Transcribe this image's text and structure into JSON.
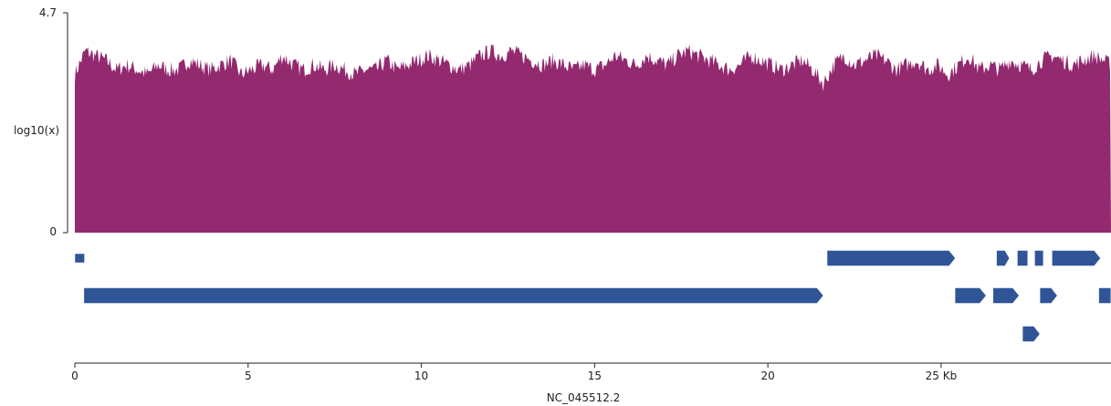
{
  "chart_data": {
    "type": "area",
    "title": "",
    "ylabel": "log10(x)",
    "xlabel": "NC_045512.2",
    "x_unit": "Kb",
    "xlim": [
      0,
      29.903
    ],
    "ylim": [
      0,
      4.7
    ],
    "y_tick_labels": [
      "0",
      "4.7"
    ],
    "x_ticks": [
      0,
      5,
      10,
      15,
      20,
      25
    ],
    "x_tick_labels": [
      "0",
      "5",
      "10",
      "15",
      "20",
      "25 Kb"
    ],
    "series": [
      {
        "color": "#93296f",
        "x": [
          0.0,
          0.3,
          0.6,
          0.9,
          1.2,
          1.5,
          1.8,
          2.1,
          2.4,
          2.7,
          3.0,
          3.3,
          3.6,
          3.9,
          4.2,
          4.5,
          4.8,
          5.1,
          5.4,
          5.7,
          6.0,
          6.3,
          6.6,
          6.9,
          7.2,
          7.5,
          7.8,
          8.1,
          8.4,
          8.7,
          9.0,
          9.3,
          9.6,
          9.9,
          10.2,
          10.5,
          10.8,
          11.1,
          11.4,
          11.7,
          12.0,
          12.3,
          12.6,
          12.9,
          13.2,
          13.5,
          13.8,
          14.1,
          14.4,
          14.7,
          15.0,
          15.3,
          15.6,
          15.9,
          16.2,
          16.5,
          16.8,
          17.1,
          17.4,
          17.7,
          18.0,
          18.3,
          18.6,
          18.9,
          19.2,
          19.5,
          19.8,
          20.1,
          20.4,
          20.7,
          21.0,
          21.3,
          21.6,
          21.9,
          22.2,
          22.5,
          22.8,
          23.1,
          23.4,
          23.7,
          24.0,
          24.3,
          24.6,
          24.9,
          25.2,
          25.5,
          25.8,
          26.1,
          26.4,
          26.7,
          27.0,
          27.3,
          27.6,
          27.9,
          28.2,
          28.5,
          28.8,
          29.1,
          29.4,
          29.7,
          29.9
        ],
        "y": [
          3.4,
          3.9,
          3.8,
          3.7,
          3.5,
          3.6,
          3.5,
          3.4,
          3.6,
          3.5,
          3.5,
          3.7,
          3.6,
          3.5,
          3.6,
          3.7,
          3.4,
          3.5,
          3.6,
          3.5,
          3.8,
          3.6,
          3.5,
          3.6,
          3.5,
          3.6,
          3.5,
          3.4,
          3.5,
          3.5,
          3.7,
          3.5,
          3.6,
          3.7,
          3.8,
          3.7,
          3.6,
          3.5,
          3.6,
          3.8,
          3.9,
          3.8,
          3.9,
          3.8,
          3.7,
          3.6,
          3.7,
          3.6,
          3.5,
          3.6,
          3.5,
          3.6,
          3.8,
          3.7,
          3.6,
          3.8,
          3.7,
          3.6,
          3.8,
          3.9,
          3.8,
          3.7,
          3.6,
          3.5,
          3.6,
          3.8,
          3.7,
          3.6,
          3.5,
          3.6,
          3.7,
          3.5,
          3.2,
          3.6,
          3.8,
          3.6,
          3.7,
          3.8,
          3.7,
          3.5,
          3.6,
          3.7,
          3.5,
          3.6,
          3.4,
          3.6,
          3.8,
          3.5,
          3.6,
          3.5,
          3.7,
          3.6,
          3.5,
          3.7,
          3.8,
          3.7,
          3.6,
          3.7,
          3.8,
          3.7,
          3.6
        ]
      }
    ],
    "features": [
      {
        "row": 0,
        "start": 0.0,
        "end": 0.28
      },
      {
        "row": 0,
        "start": 21.71,
        "end": 25.41
      },
      {
        "row": 0,
        "start": 26.6,
        "end": 26.97
      },
      {
        "row": 0,
        "start": 27.2,
        "end": 27.5
      },
      {
        "row": 0,
        "start": 27.7,
        "end": 27.95
      },
      {
        "row": 0,
        "start": 28.2,
        "end": 29.6
      },
      {
        "row": 1,
        "start": 0.26,
        "end": 21.6
      },
      {
        "row": 1,
        "start": 25.4,
        "end": 26.3
      },
      {
        "row": 1,
        "start": 26.5,
        "end": 27.25
      },
      {
        "row": 1,
        "start": 27.85,
        "end": 28.35
      },
      {
        "row": 1,
        "start": 29.55,
        "end": 29.9
      },
      {
        "row": 2,
        "start": 27.35,
        "end": 27.85
      }
    ],
    "feature_color": "#2f5597",
    "grid": false,
    "legend": "none"
  }
}
